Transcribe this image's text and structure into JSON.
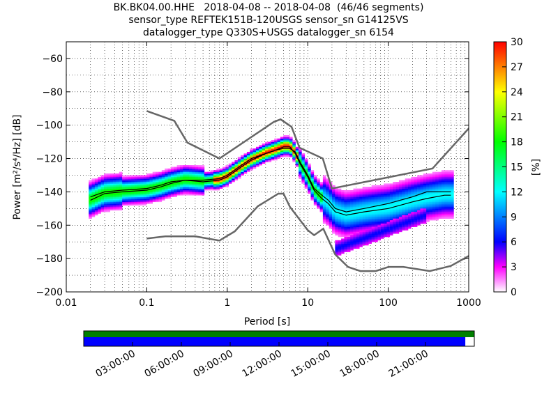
{
  "header": {
    "title_line1": "BK.BK04.00.HHE   2018-04-08 -- 2018-04-08  (46/46 segments)",
    "title_line2": "sensor_type REFTEK151B-120USGS sensor_sn G14125VS",
    "title_line3": "datalogger_type Q330S+USGS datalogger_sn 6154"
  },
  "chart_data": {
    "type": "heatmap",
    "xlabel": "Period [s]",
    "ylabel": "Power [m²/s⁴/Hz] [dB]",
    "xscale": "log",
    "xlim": [
      0.01,
      1000
    ],
    "ylim": [
      -200,
      -50
    ],
    "x_ticks": [
      0.01,
      0.1,
      1,
      10,
      100,
      1000
    ],
    "x_tick_labels": [
      "0.01",
      "0.1",
      "1",
      "10",
      "100",
      "1000"
    ],
    "y_ticks": [
      -200,
      -180,
      -160,
      -140,
      -120,
      -100,
      -80,
      -60
    ],
    "y_tick_labels": [
      "−200",
      "−180",
      "−160",
      "−140",
      "−120",
      "−100",
      "−80",
      "−60"
    ],
    "grid": true,
    "colorbar": {
      "label": "[%]",
      "range": [
        0,
        30
      ],
      "ticks": [
        0,
        3,
        6,
        9,
        12,
        15,
        18,
        21,
        24,
        27,
        30
      ],
      "tick_labels": [
        "0",
        "3",
        "6",
        "9",
        "12",
        "15",
        "18",
        "21",
        "24",
        "27",
        "30"
      ]
    },
    "noise_model_high": [
      [
        0.1,
        -91.5
      ],
      [
        0.22,
        -97.4
      ],
      [
        0.32,
        -110.5
      ],
      [
        0.8,
        -120
      ],
      [
        3.8,
        -98
      ],
      [
        4.6,
        -96.5
      ],
      [
        6.3,
        -101
      ],
      [
        7.9,
        -113.5
      ],
      [
        15.4,
        -120
      ],
      [
        20,
        -138
      ],
      [
        354.8,
        -126
      ],
      [
        10000,
        -48.5
      ]
    ],
    "noise_model_low": [
      [
        0.1,
        -168
      ],
      [
        0.17,
        -166.7
      ],
      [
        0.4,
        -166.7
      ],
      [
        0.8,
        -169.2
      ],
      [
        1.24,
        -163.7
      ],
      [
        2.4,
        -148.6
      ],
      [
        4.3,
        -141.1
      ],
      [
        5,
        -141.1
      ],
      [
        6,
        -149
      ],
      [
        10,
        -163
      ],
      [
        12,
        -166
      ],
      [
        15.6,
        -162.1
      ],
      [
        21.9,
        -177.5
      ],
      [
        31.6,
        -185
      ],
      [
        45,
        -187.5
      ],
      [
        70,
        -187.5
      ],
      [
        101,
        -185
      ],
      [
        154,
        -185
      ],
      [
        328,
        -187.5
      ],
      [
        600,
        -184.4
      ],
      [
        10000,
        -151.5
      ]
    ],
    "mean_curve": [
      [
        0.02,
        -143
      ],
      [
        0.03,
        -140
      ],
      [
        0.05,
        -139
      ],
      [
        0.1,
        -138
      ],
      [
        0.15,
        -136
      ],
      [
        0.2,
        -134
      ],
      [
        0.3,
        -133
      ],
      [
        0.5,
        -133
      ],
      [
        0.8,
        -132
      ],
      [
        1,
        -130
      ],
      [
        1.5,
        -124
      ],
      [
        2,
        -120
      ],
      [
        3,
        -117
      ],
      [
        4,
        -115
      ],
      [
        5,
        -114
      ],
      [
        6,
        -114
      ],
      [
        7,
        -116
      ],
      [
        8,
        -122
      ],
      [
        10,
        -130
      ],
      [
        12,
        -138
      ],
      [
        15,
        -142
      ],
      [
        18,
        -145
      ],
      [
        22,
        -150
      ],
      [
        30,
        -152
      ],
      [
        50,
        -150
      ],
      [
        100,
        -147
      ],
      [
        200,
        -143
      ],
      [
        300,
        -140
      ],
      [
        500,
        -140
      ],
      [
        600,
        -140
      ]
    ],
    "mode_curve": [
      [
        0.02,
        -145
      ],
      [
        0.03,
        -141
      ],
      [
        0.05,
        -140
      ],
      [
        0.1,
        -139
      ],
      [
        0.15,
        -137
      ],
      [
        0.2,
        -135
      ],
      [
        0.3,
        -133
      ],
      [
        0.5,
        -134
      ],
      [
        0.8,
        -133
      ],
      [
        1,
        -131
      ],
      [
        1.5,
        -125
      ],
      [
        2,
        -121
      ],
      [
        3,
        -117
      ],
      [
        4,
        -115
      ],
      [
        5,
        -113
      ],
      [
        6,
        -113
      ],
      [
        7,
        -117
      ],
      [
        8,
        -123
      ],
      [
        10,
        -131
      ],
      [
        12,
        -139
      ],
      [
        15,
        -144
      ],
      [
        18,
        -147
      ],
      [
        22,
        -152
      ],
      [
        30,
        -154
      ],
      [
        50,
        -152
      ],
      [
        100,
        -150
      ],
      [
        200,
        -146
      ],
      [
        300,
        -144
      ],
      [
        500,
        -142
      ],
      [
        600,
        -142
      ]
    ],
    "coverage": {
      "time_ticks": [
        "03:00:00",
        "06:00:00",
        "09:00:00",
        "12:00:00",
        "15:00:00",
        "18:00:00",
        "21:00:00"
      ],
      "data_fraction": 0.977
    }
  }
}
